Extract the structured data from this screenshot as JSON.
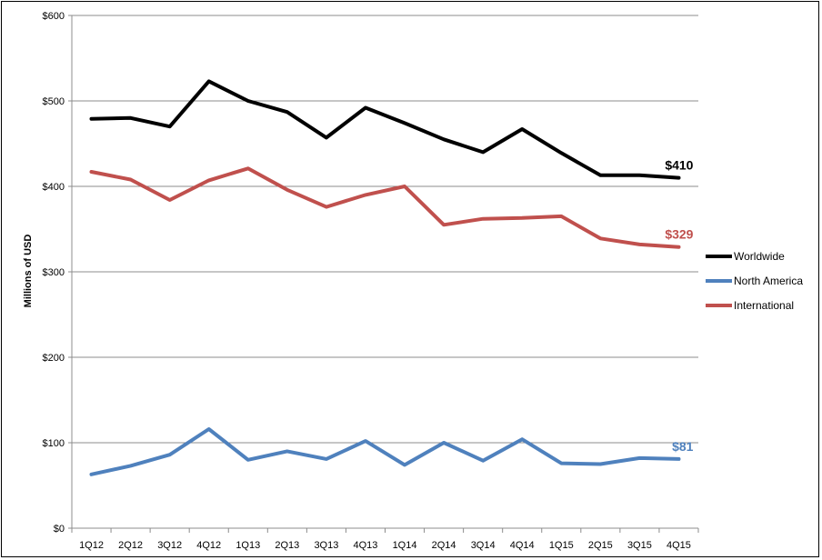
{
  "chart_data": {
    "type": "line",
    "title": "",
    "xlabel": "",
    "ylabel": "Millions of USD",
    "categories": [
      "1Q12",
      "2Q12",
      "3Q12",
      "4Q12",
      "1Q13",
      "2Q13",
      "3Q13",
      "4Q13",
      "1Q14",
      "2Q14",
      "3Q14",
      "4Q14",
      "1Q15",
      "2Q15",
      "3Q15",
      "4Q15"
    ],
    "yticks": [
      0,
      100,
      200,
      300,
      400,
      500,
      600
    ],
    "ytick_labels": [
      "$0",
      "$100",
      "$200",
      "$300",
      "$400",
      "$500",
      "$600"
    ],
    "ylim": [
      0,
      600
    ],
    "grid": "horizontal",
    "legend_position": "right",
    "series": [
      {
        "name": "Worldwide",
        "color": "#000000",
        "values": [
          479,
          480,
          470,
          523,
          500,
          487,
          457,
          492,
          474,
          455,
          440,
          467,
          439,
          413,
          413,
          410
        ],
        "end_label": "$410"
      },
      {
        "name": "North America",
        "color": "#4f81bd",
        "values": [
          63,
          73,
          86,
          116,
          80,
          90,
          81,
          102,
          74,
          100,
          79,
          104,
          76,
          75,
          82,
          81
        ],
        "end_label": "$81"
      },
      {
        "name": "International",
        "color": "#c0504d",
        "values": [
          417,
          408,
          384,
          407,
          421,
          396,
          376,
          390,
          400,
          355,
          362,
          363,
          365,
          339,
          332,
          329
        ],
        "end_label": "$329"
      }
    ],
    "legend_order": [
      "Worldwide",
      "North America",
      "International"
    ]
  }
}
